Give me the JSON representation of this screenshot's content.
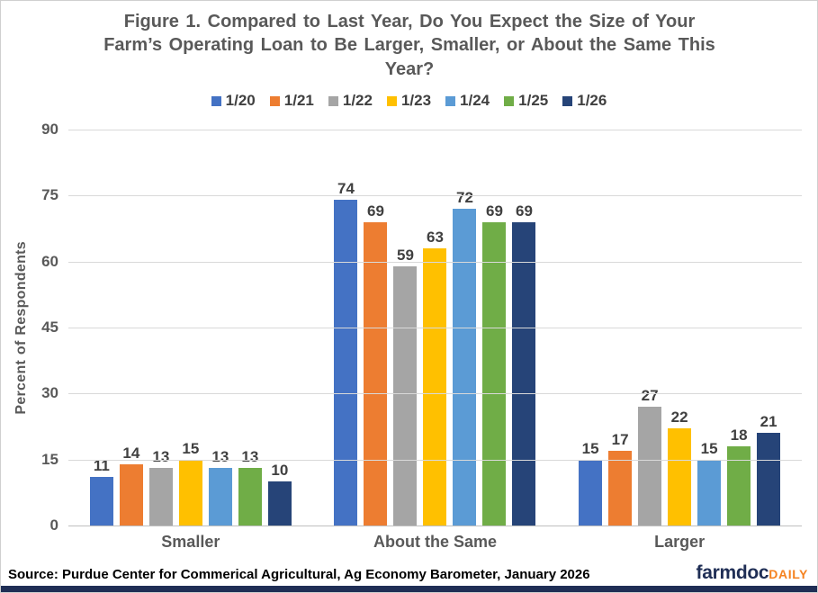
{
  "figure": {
    "source": "Source: Purdue Center for Commerical Agricultural, Ag Economy Barometer, January 2026",
    "logo": {
      "primary": "farmdoc",
      "secondary": "DAILY",
      "primary_color": "#1f2e55",
      "secondary_color": "#f58220"
    },
    "accent_bar_color": "#1f2e55"
  },
  "chart_data": {
    "type": "bar",
    "title": "Figure 1. Compared to Last Year, Do You Expect the Size of Your Farm’s Operating Loan to Be Larger, Smaller, or About the Same This Year?",
    "categories": [
      "Smaller",
      "About the Same",
      "Larger"
    ],
    "series": [
      {
        "name": "1/20",
        "color": "#4472C4",
        "values": [
          11,
          74,
          15
        ]
      },
      {
        "name": "1/21",
        "color": "#ED7D31",
        "values": [
          14,
          69,
          17
        ]
      },
      {
        "name": "1/22",
        "color": "#A5A5A5",
        "values": [
          13,
          59,
          27
        ]
      },
      {
        "name": "1/23",
        "color": "#FFC000",
        "values": [
          15,
          63,
          22
        ]
      },
      {
        "name": "1/24",
        "color": "#5B9BD5",
        "values": [
          13,
          72,
          15
        ]
      },
      {
        "name": "1/25",
        "color": "#70AD47",
        "values": [
          13,
          69,
          18
        ]
      },
      {
        "name": "1/26",
        "color": "#264478",
        "values": [
          10,
          69,
          21
        ]
      }
    ],
    "xlabel": "",
    "ylabel": "Percent of Respondents",
    "ylim": [
      0,
      90
    ],
    "yticks": [
      0,
      15,
      30,
      45,
      60,
      75,
      90
    ],
    "grid": true,
    "gridline_color": "#d9d9d9",
    "axis_line_color": "#bfbfbf",
    "legend_position": "top",
    "value_labels": true
  }
}
